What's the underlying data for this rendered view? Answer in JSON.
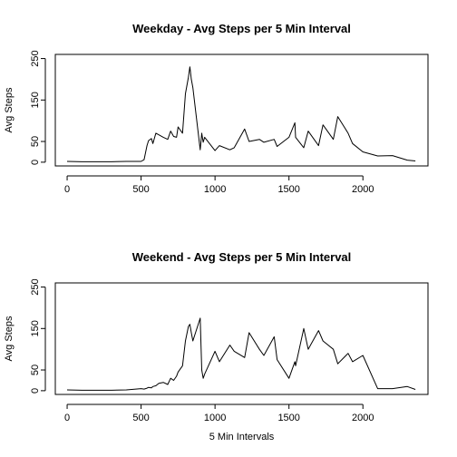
{
  "chart_data": [
    {
      "type": "line",
      "title": "Weekday - Avg Steps per 5 Min Interval",
      "xlabel": "",
      "ylabel": "Avg Steps",
      "xlim": [
        -80,
        2440
      ],
      "ylim": [
        -9,
        260
      ],
      "xticks": [
        0,
        500,
        1000,
        1500,
        2000
      ],
      "yticks": [
        0,
        50,
        150,
        250
      ],
      "xtick_labels": [
        "0",
        "500",
        "1000",
        "1500",
        "2000"
      ],
      "ytick_labels": [
        "0",
        "50",
        "150",
        "250"
      ],
      "x": [
        0,
        100,
        200,
        300,
        400,
        500,
        520,
        540,
        550,
        570,
        580,
        600,
        620,
        650,
        680,
        700,
        720,
        740,
        750,
        780,
        800,
        820,
        830,
        840,
        850,
        900,
        910,
        920,
        930,
        1000,
        1030,
        1100,
        1130,
        1200,
        1230,
        1300,
        1330,
        1400,
        1420,
        1500,
        1540,
        1545,
        1600,
        1630,
        1700,
        1730,
        1800,
        1830,
        1900,
        1930,
        2000,
        2100,
        2200,
        2300,
        2355
      ],
      "series": [
        {
          "name": "",
          "values": [
            2,
            1,
            1,
            1,
            2,
            2,
            6,
            40,
            52,
            57,
            45,
            70,
            66,
            60,
            55,
            75,
            62,
            60,
            85,
            70,
            165,
            205,
            230,
            200,
            180,
            30,
            70,
            48,
            60,
            28,
            40,
            30,
            35,
            80,
            50,
            55,
            48,
            55,
            38,
            60,
            95,
            60,
            35,
            75,
            40,
            90,
            55,
            110,
            70,
            45,
            25,
            15,
            16,
            5,
            3
          ]
        }
      ]
    },
    {
      "type": "line",
      "title": "Weekend - Avg Steps per 5 Min Interval",
      "xlabel": "5 Min Intervals",
      "ylabel": "Avg Steps",
      "xlim": [
        -80,
        2440
      ],
      "ylim": [
        -9,
        260
      ],
      "xticks": [
        0,
        500,
        1000,
        1500,
        2000
      ],
      "yticks": [
        0,
        50,
        150,
        250
      ],
      "xtick_labels": [
        "0",
        "500",
        "1000",
        "1500",
        "2000"
      ],
      "ytick_labels": [
        "0",
        "50",
        "150",
        "250"
      ],
      "x": [
        0,
        100,
        200,
        300,
        400,
        500,
        520,
        540,
        550,
        570,
        580,
        600,
        620,
        650,
        680,
        700,
        720,
        740,
        750,
        780,
        800,
        820,
        830,
        840,
        850,
        900,
        910,
        920,
        930,
        1000,
        1030,
        1100,
        1130,
        1200,
        1230,
        1300,
        1330,
        1400,
        1420,
        1500,
        1540,
        1545,
        1600,
        1630,
        1700,
        1730,
        1800,
        1830,
        1900,
        1930,
        2000,
        2100,
        2200,
        2300,
        2355
      ],
      "series": [
        {
          "name": "",
          "values": [
            2,
            1,
            1,
            1,
            2,
            5,
            4,
            6,
            8,
            7,
            10,
            12,
            18,
            20,
            15,
            30,
            25,
            35,
            45,
            60,
            120,
            155,
            160,
            140,
            120,
            175,
            50,
            30,
            40,
            95,
            70,
            110,
            95,
            80,
            140,
            100,
            85,
            130,
            75,
            30,
            70,
            60,
            150,
            100,
            145,
            120,
            100,
            65,
            90,
            70,
            85,
            5,
            5,
            10,
            3
          ]
        }
      ]
    }
  ]
}
